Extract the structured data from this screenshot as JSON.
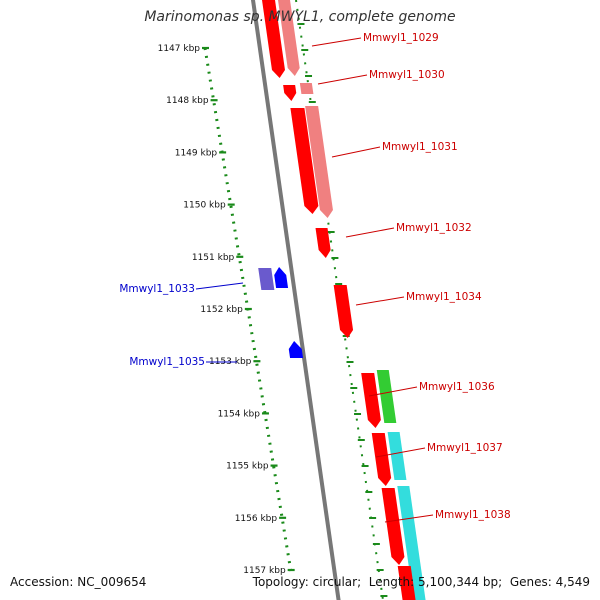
{
  "title": "Marinomonas sp. MWYL1, complete genome",
  "footer": {
    "accession_label": "Accession:",
    "accession": "NC_009654",
    "topology_label": "Topology:",
    "topology": "circular",
    "length_label": "Length:",
    "length": "5,100,344 bp",
    "genes_label": "Genes:",
    "genes": "4,549"
  },
  "colors": {
    "forward_gene": "#ff0000",
    "forward_gene_light": "#f08080",
    "reverse_gene": "#0000ff",
    "reverse_gene_light": "#6a5acd",
    "green_feature": "#33cc33",
    "cyan_feature": "#33dddd",
    "backbone": "#777777",
    "ruler": "#1a8a1a",
    "forward_label": "#cc0000",
    "reverse_label": "#0000cc"
  },
  "ruler_ticks": [
    {
      "label": "1147 kbp",
      "kbp": 1147
    },
    {
      "label": "1148 kbp",
      "kbp": 1148
    },
    {
      "label": "1149 kbp",
      "kbp": 1149
    },
    {
      "label": "1150 kbp",
      "kbp": 1150
    },
    {
      "label": "1151 kbp",
      "kbp": 1151
    },
    {
      "label": "1152 kbp",
      "kbp": 1152
    },
    {
      "label": "1153 kbp",
      "kbp": 1153
    },
    {
      "label": "1154 kbp",
      "kbp": 1154
    },
    {
      "label": "1155 kbp",
      "kbp": 1155
    },
    {
      "label": "1156 kbp",
      "kbp": 1156
    },
    {
      "label": "1157 kbp",
      "kbp": 1157
    }
  ],
  "genes": [
    {
      "label": "Mmwyl1_1029",
      "strand": "forward"
    },
    {
      "label": "Mmwyl1_1030",
      "strand": "forward"
    },
    {
      "label": "Mmwyl1_1031",
      "strand": "forward"
    },
    {
      "label": "Mmwyl1_1032",
      "strand": "forward"
    },
    {
      "label": "Mmwyl1_1033",
      "strand": "reverse"
    },
    {
      "label": "Mmwyl1_1034",
      "strand": "forward"
    },
    {
      "label": "Mmwyl1_1035",
      "strand": "reverse"
    },
    {
      "label": "Mmwyl1_1036",
      "strand": "forward"
    },
    {
      "label": "Mmwyl1_1037",
      "strand": "forward"
    },
    {
      "label": "Mmwyl1_1038",
      "strand": "forward"
    }
  ]
}
